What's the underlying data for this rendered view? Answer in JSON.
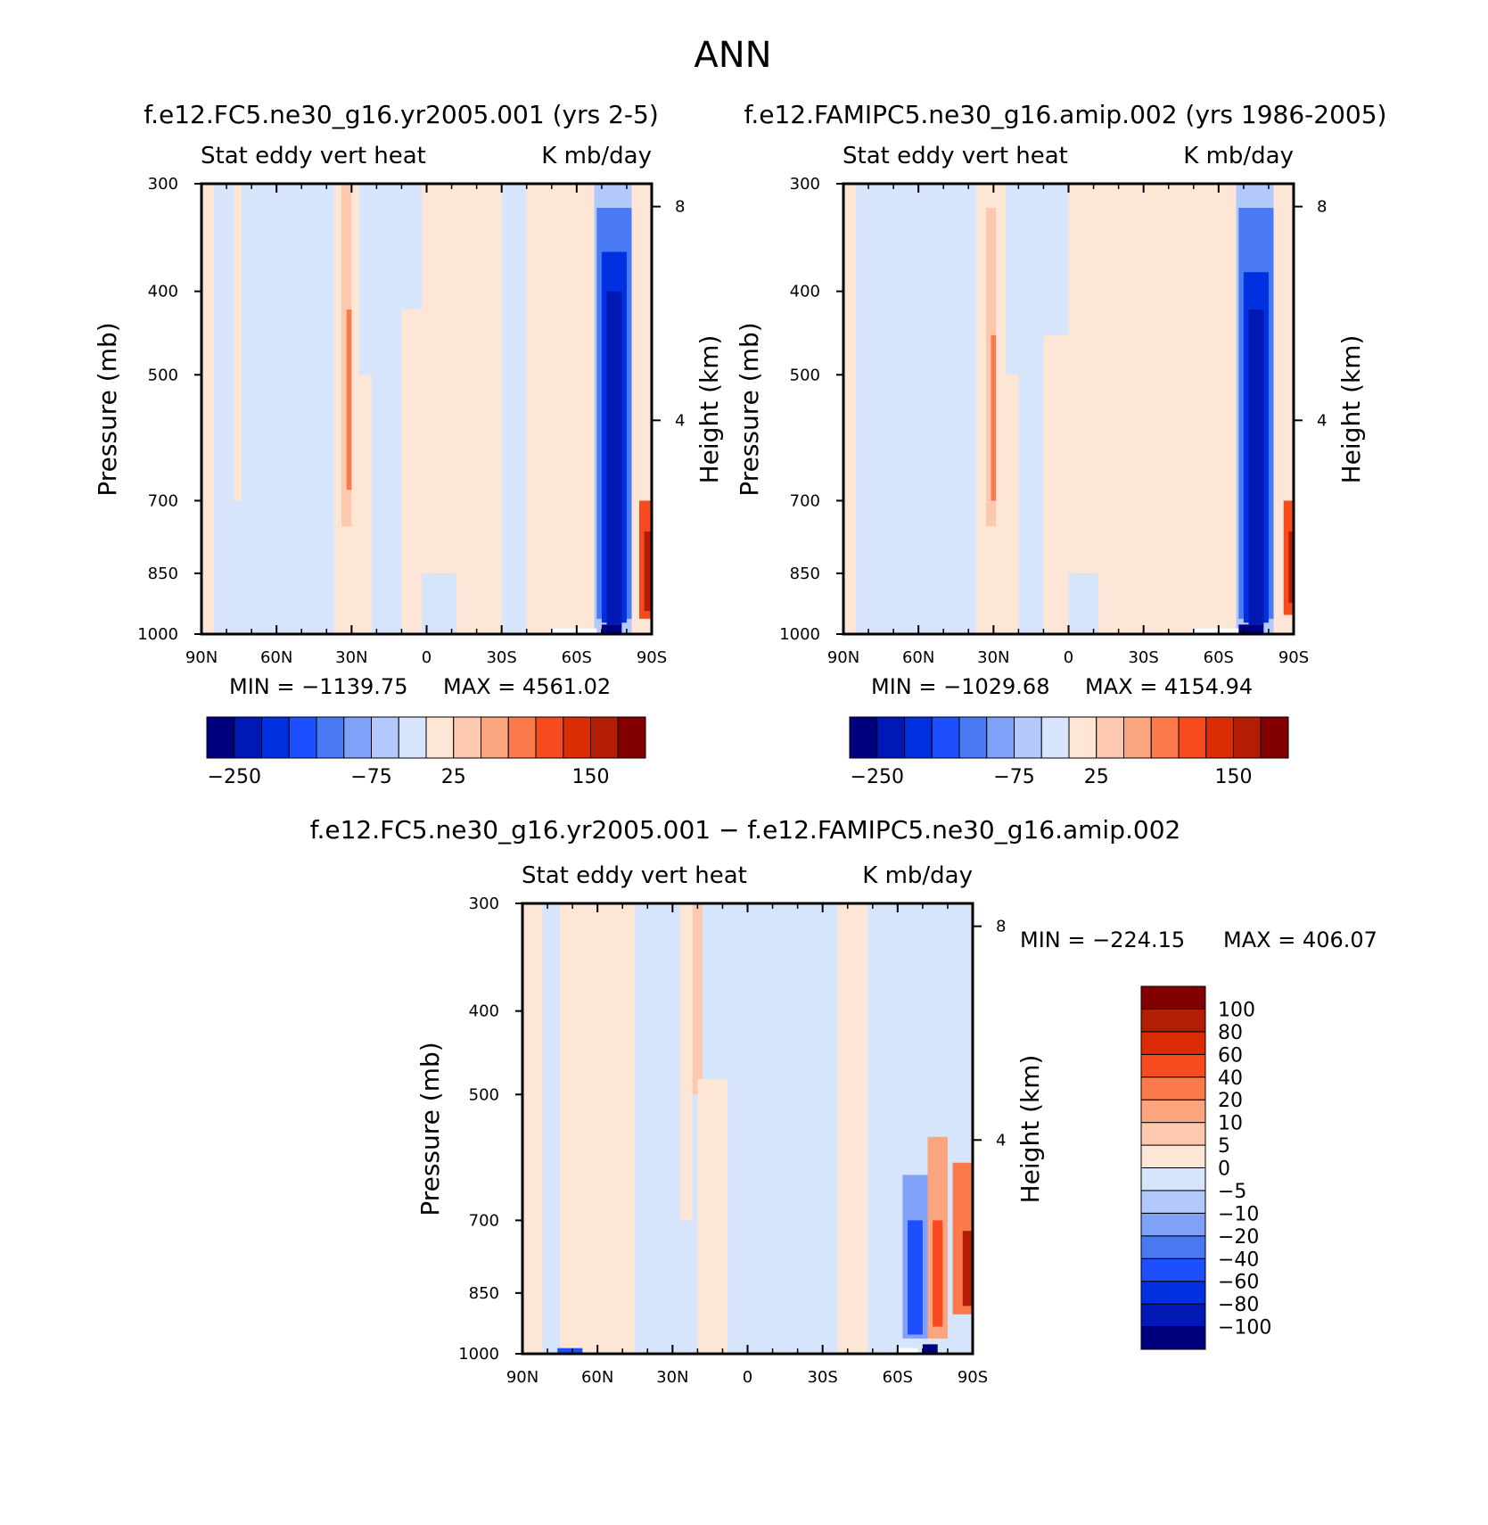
{
  "figure": {
    "title": "ANN",
    "colors": {
      "white": "#ffffff",
      "frame": "#000000"
    }
  },
  "palette_abs": [
    "#00007f",
    "#0018b4",
    "#0030e0",
    "#1d4fff",
    "#4a79f4",
    "#7fa1f7",
    "#b3c9fb",
    "#d6e5fb",
    "#fde6d5",
    "#fcc8ae",
    "#fba57e",
    "#fb7a4b",
    "#f74a1f",
    "#db2c05",
    "#b21d04",
    "#820000"
  ],
  "palette_diff": [
    "#00007f",
    "#0018b4",
    "#0030e0",
    "#1d4fff",
    "#4a79f4",
    "#7fa1f7",
    "#b3c9fb",
    "#d6e5fb",
    "#fde6d5",
    "#fcc8ae",
    "#fba57e",
    "#fb7a4b",
    "#f74a1f",
    "#db2c05",
    "#b21d04",
    "#820000"
  ],
  "chart_data": [
    {
      "type": "heatmap",
      "id": "panel-1",
      "title": "f.e12.FC5.ne30_g16.yr2005.001 (yrs 2-5)",
      "left_string": "Stat eddy vert heat",
      "right_string": "K mb/day",
      "ylabel": "Pressure (mb)",
      "y2label": "Height (km)",
      "xlim": [
        90,
        -90
      ],
      "ylim": [
        1000,
        300
      ],
      "x_ticks": [
        90,
        60,
        30,
        0,
        -30,
        -60,
        -90
      ],
      "x_tick_labels": [
        "90N",
        "60N",
        "30N",
        "0",
        "30S",
        "60S",
        "90S"
      ],
      "y_ticks": [
        300,
        400,
        500,
        700,
        850,
        1000
      ],
      "y_tick_labels": [
        "300",
        "400",
        "500",
        "700",
        "850",
        "1000"
      ],
      "y2_ticks": [
        8,
        4
      ],
      "y2_tick_labels": [
        "8",
        "4"
      ],
      "min_label": "MIN = −1139.75",
      "max_label": "MAX = 4561.02",
      "min": -1139.75,
      "max": 4561.02,
      "colorbar": {
        "orientation": "horizontal",
        "levels": [
          -250,
          -200,
          -150,
          -125,
          -100,
          -75,
          -50,
          0,
          25,
          50,
          75,
          100,
          125,
          150,
          200
        ],
        "label_text": [
          "−250",
          "−75",
          "25",
          "150"
        ]
      },
      "bands": [
        {
          "lat": [
            90,
            85
          ],
          "lev": [
            1000,
            300
          ],
          "bin": 8
        },
        {
          "lat": [
            85,
            77
          ],
          "lev": [
            1000,
            300
          ],
          "bin": 7
        },
        {
          "lat": [
            77,
            74
          ],
          "lev": [
            700,
            300
          ],
          "bin": 8
        },
        {
          "lat": [
            74,
            35
          ],
          "lev": [
            1000,
            300
          ],
          "bin": 7
        },
        {
          "lat": [
            37,
            27
          ],
          "lev": [
            1000,
            300
          ],
          "bin": 8
        },
        {
          "lat": [
            34,
            30
          ],
          "lev": [
            750,
            300
          ],
          "bin": 9
        },
        {
          "lat": [
            32,
            30
          ],
          "lev": [
            680,
            420
          ],
          "bin": 11
        },
        {
          "lat": [
            27,
            22
          ],
          "lev": [
            1000,
            500
          ],
          "bin": 8
        },
        {
          "lat": [
            10,
            2
          ],
          "lev": [
            1000,
            420
          ],
          "bin": 8
        },
        {
          "lat": [
            2,
            -30
          ],
          "lev": [
            850,
            300
          ],
          "bin": 8
        },
        {
          "lat": [
            -12,
            -30
          ],
          "lev": [
            1000,
            300
          ],
          "bin": 8
        },
        {
          "lat": [
            -40,
            -67
          ],
          "lev": [
            1000,
            300
          ],
          "bin": 8
        },
        {
          "lat": [
            -67,
            -87
          ],
          "lev": [
            1000,
            300
          ],
          "bin": 6
        },
        {
          "lat": [
            -68,
            -82
          ],
          "lev": [
            960,
            320
          ],
          "bin": 4
        },
        {
          "lat": [
            -70,
            -80
          ],
          "lev": [
            970,
            360
          ],
          "bin": 2
        },
        {
          "lat": [
            -72,
            -78
          ],
          "lev": [
            975,
            400
          ],
          "bin": 1
        },
        {
          "lat": [
            -82,
            -90
          ],
          "lev": [
            1000,
            300
          ],
          "bin": 8
        },
        {
          "lat": [
            -85,
            -90
          ],
          "lev": [
            960,
            700
          ],
          "bin": 12
        },
        {
          "lat": [
            -87,
            -90
          ],
          "lev": [
            940,
            760
          ],
          "bin": 14
        },
        {
          "lat": [
            -70,
            -78
          ],
          "lev": [
            1000,
            975
          ],
          "bin": 0
        },
        {
          "lat": [
            -50,
            -68
          ],
          "lev": [
            1000,
            985
          ],
          "bin": -1
        }
      ]
    },
    {
      "type": "heatmap",
      "id": "panel-2",
      "title": "f.e12.FAMIPC5.ne30_g16.amip.002 (yrs 1986-2005)",
      "left_string": "Stat eddy vert heat",
      "right_string": "K mb/day",
      "ylabel": "Pressure (mb)",
      "y2label": "Height (km)",
      "xlim": [
        90,
        -90
      ],
      "ylim": [
        1000,
        300
      ],
      "x_ticks": [
        90,
        60,
        30,
        0,
        -30,
        -60,
        -90
      ],
      "x_tick_labels": [
        "90N",
        "60N",
        "30N",
        "0",
        "30S",
        "60S",
        "90S"
      ],
      "y_ticks": [
        300,
        400,
        500,
        700,
        850,
        1000
      ],
      "y_tick_labels": [
        "300",
        "400",
        "500",
        "700",
        "850",
        "1000"
      ],
      "y2_ticks": [
        8,
        4
      ],
      "y2_tick_labels": [
        "8",
        "4"
      ],
      "min_label": "MIN = −1029.68",
      "max_label": "MAX = 4154.94",
      "min": -1029.68,
      "max": 4154.94,
      "colorbar": {
        "orientation": "horizontal",
        "levels": [
          -250,
          -200,
          -150,
          -125,
          -100,
          -75,
          -50,
          0,
          25,
          50,
          75,
          100,
          125,
          150,
          200
        ],
        "label_text": [
          "−250",
          "−75",
          "25",
          "150"
        ]
      },
      "bands": [
        {
          "lat": [
            90,
            85
          ],
          "lev": [
            1000,
            300
          ],
          "bin": 8
        },
        {
          "lat": [
            85,
            77
          ],
          "lev": [
            1000,
            300
          ],
          "bin": 7
        },
        {
          "lat": [
            74,
            35
          ],
          "lev": [
            1000,
            300
          ],
          "bin": 7
        },
        {
          "lat": [
            37,
            25
          ],
          "lev": [
            1000,
            300
          ],
          "bin": 8
        },
        {
          "lat": [
            33,
            29
          ],
          "lev": [
            750,
            320
          ],
          "bin": 9
        },
        {
          "lat": [
            31,
            29
          ],
          "lev": [
            700,
            450
          ],
          "bin": 11
        },
        {
          "lat": [
            25,
            20
          ],
          "lev": [
            1000,
            500
          ],
          "bin": 8
        },
        {
          "lat": [
            10,
            0
          ],
          "lev": [
            1000,
            450
          ],
          "bin": 8
        },
        {
          "lat": [
            0,
            -30
          ],
          "lev": [
            850,
            300
          ],
          "bin": 8
        },
        {
          "lat": [
            -12,
            -40
          ],
          "lev": [
            1000,
            300
          ],
          "bin": 8
        },
        {
          "lat": [
            -40,
            -67
          ],
          "lev": [
            1000,
            300
          ],
          "bin": 8
        },
        {
          "lat": [
            -67,
            -87
          ],
          "lev": [
            1000,
            300
          ],
          "bin": 6
        },
        {
          "lat": [
            -68,
            -82
          ],
          "lev": [
            960,
            320
          ],
          "bin": 4
        },
        {
          "lat": [
            -70,
            -80
          ],
          "lev": [
            970,
            380
          ],
          "bin": 2
        },
        {
          "lat": [
            -72,
            -78
          ],
          "lev": [
            975,
            420
          ],
          "bin": 1
        },
        {
          "lat": [
            -82,
            -90
          ],
          "lev": [
            1000,
            300
          ],
          "bin": 8
        },
        {
          "lat": [
            -86,
            -90
          ],
          "lev": [
            950,
            700
          ],
          "bin": 12
        },
        {
          "lat": [
            -88,
            -90
          ],
          "lev": [
            920,
            760
          ],
          "bin": 14
        },
        {
          "lat": [
            -68,
            -78
          ],
          "lev": [
            1000,
            975
          ],
          "bin": 0
        },
        {
          "lat": [
            -50,
            -68
          ],
          "lev": [
            1000,
            985
          ],
          "bin": -1
        }
      ]
    },
    {
      "type": "heatmap",
      "id": "panel-3",
      "title": "f.e12.FC5.ne30_g16.yr2005.001 − f.e12.FAMIPC5.ne30_g16.amip.002",
      "left_string": "Stat eddy vert heat",
      "right_string": "K mb/day",
      "ylabel": "Pressure (mb)",
      "y2label": "Height (km)",
      "xlim": [
        90,
        -90
      ],
      "ylim": [
        1000,
        300
      ],
      "x_ticks": [
        90,
        60,
        30,
        0,
        -30,
        -60,
        -90
      ],
      "x_tick_labels": [
        "90N",
        "60N",
        "30N",
        "0",
        "30S",
        "60S",
        "90S"
      ],
      "y_ticks": [
        300,
        400,
        500,
        700,
        850,
        1000
      ],
      "y_tick_labels": [
        "300",
        "400",
        "500",
        "700",
        "850",
        "1000"
      ],
      "y2_ticks": [
        8,
        4
      ],
      "y2_tick_labels": [
        "8",
        "4"
      ],
      "min_label": "MIN = −224.15",
      "max_label": "MAX = 406.07",
      "min": -224.15,
      "max": 406.07,
      "colorbar": {
        "orientation": "vertical",
        "levels": [
          -100,
          -80,
          -60,
          -40,
          -20,
          -10,
          -5,
          0,
          5,
          10,
          20,
          40,
          60,
          80,
          100
        ],
        "label_text": [
          "−100",
          "−80",
          "−60",
          "−40",
          "−20",
          "−10",
          "−5",
          "0",
          "5",
          "10",
          "20",
          "40",
          "60",
          "80",
          "100"
        ]
      },
      "bands": [
        {
          "lat": [
            90,
            82
          ],
          "lev": [
            1000,
            300
          ],
          "bin": 8
        },
        {
          "lat": [
            82,
            75
          ],
          "lev": [
            1000,
            300
          ],
          "bin": 7
        },
        {
          "lat": [
            75,
            45
          ],
          "lev": [
            1000,
            300
          ],
          "bin": 8
        },
        {
          "lat": [
            45,
            35
          ],
          "lev": [
            1000,
            300
          ],
          "bin": 7
        },
        {
          "lat": [
            35,
            10
          ],
          "lev": [
            1000,
            300
          ],
          "bin": 7
        },
        {
          "lat": [
            27,
            22
          ],
          "lev": [
            700,
            300
          ],
          "bin": 8
        },
        {
          "lat": [
            22,
            18
          ],
          "lev": [
            500,
            300
          ],
          "bin": 9
        },
        {
          "lat": [
            20,
            8
          ],
          "lev": [
            1000,
            480
          ],
          "bin": 8
        },
        {
          "lat": [
            8,
            -20
          ],
          "lev": [
            1000,
            300
          ],
          "bin": 7
        },
        {
          "lat": [
            -36,
            -48
          ],
          "lev": [
            1000,
            300
          ],
          "bin": 8
        },
        {
          "lat": [
            -48,
            -60
          ],
          "lev": [
            1000,
            300
          ],
          "bin": 7
        },
        {
          "lat": [
            -62,
            -72
          ],
          "lev": [
            960,
            620
          ],
          "bin": 5
        },
        {
          "lat": [
            -64,
            -70
          ],
          "lev": [
            950,
            700
          ],
          "bin": 3
        },
        {
          "lat": [
            -72,
            -80
          ],
          "lev": [
            960,
            560
          ],
          "bin": 10
        },
        {
          "lat": [
            -74,
            -78
          ],
          "lev": [
            930,
            700
          ],
          "bin": 12
        },
        {
          "lat": [
            -82,
            -90
          ],
          "lev": [
            900,
            600
          ],
          "bin": 11
        },
        {
          "lat": [
            -86,
            -90
          ],
          "lev": [
            880,
            720
          ],
          "bin": 14
        },
        {
          "lat": [
            -70,
            -76
          ],
          "lev": [
            1000,
            975
          ],
          "bin": 0
        },
        {
          "lat": [
            -60,
            -68
          ],
          "lev": [
            1000,
            985
          ],
          "bin": -1
        },
        {
          "lat": [
            76,
            66
          ],
          "lev": [
            1000,
            985
          ],
          "bin": 3
        }
      ]
    }
  ]
}
